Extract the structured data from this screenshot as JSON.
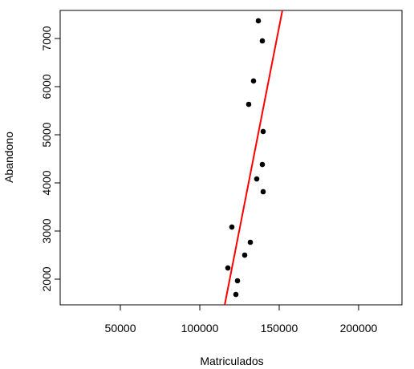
{
  "chart_data": {
    "type": "scatter",
    "xlabel": "Matriculados",
    "ylabel": "Abandono",
    "x": [
      136869,
      139394,
      133838,
      130808,
      139899,
      139394,
      135859,
      139899,
      120202,
      131818,
      128283,
      117677,
      123737,
      122727
    ],
    "values": [
      7367,
      6950,
      6117,
      5633,
      5067,
      4383,
      4083,
      3817,
      3083,
      2767,
      2500,
      2233,
      1967,
      1683
    ],
    "color": "#000000",
    "line": {
      "x": [
        115700,
        152000
      ],
      "y": [
        1467,
        7583
      ],
      "color": "#ff0000"
    },
    "xlim": [
      12100,
      227300
    ],
    "ylim": [
      1467,
      7583
    ],
    "xticks": [
      50000,
      100000,
      150000,
      200000
    ],
    "yticks": [
      2000,
      3000,
      4000,
      5000,
      6000,
      7000
    ],
    "grid": false
  }
}
